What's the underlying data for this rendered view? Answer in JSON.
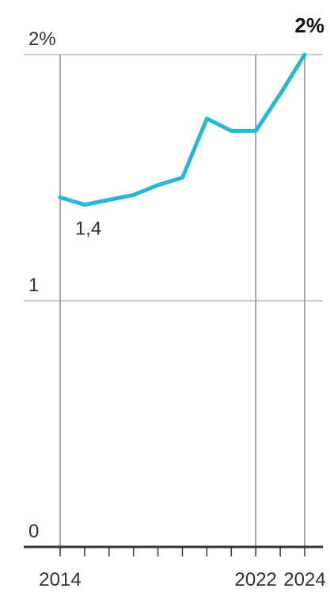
{
  "chart_data": {
    "type": "line",
    "x": [
      2014,
      2015,
      2016,
      2017,
      2018,
      2019,
      2020,
      2021,
      2022,
      2023,
      2024
    ],
    "series": [
      {
        "values": [
          1.42,
          1.39,
          1.41,
          1.43,
          1.47,
          1.5,
          1.74,
          1.69,
          1.69,
          1.84,
          2.0
        ],
        "color": "#27b7d6"
      }
    ],
    "ylim": [
      0,
      2
    ],
    "xlim": [
      2014,
      2024
    ],
    "y_ticks": [
      {
        "value": 2,
        "label": "2%"
      },
      {
        "value": 1,
        "label": "1"
      },
      {
        "value": 0,
        "label": "0"
      }
    ],
    "x_tick_labels": [
      {
        "value": 2014,
        "label": "2014"
      },
      {
        "value": 2022,
        "label": "2022"
      },
      {
        "value": 2024,
        "label": "2024"
      }
    ],
    "vertical_guides": [
      2014,
      2022,
      2024
    ],
    "annotations": [
      {
        "x": 2015,
        "y": 1.39,
        "text": "1,4",
        "style": "normal"
      },
      {
        "x": 2024,
        "y": 2.0,
        "text": "2%",
        "style": "bold"
      }
    ],
    "grid": true,
    "colors": {
      "line": "#27b7d6",
      "grid": "#bbbbbb",
      "axis": "#333333",
      "text": "#333333"
    }
  }
}
